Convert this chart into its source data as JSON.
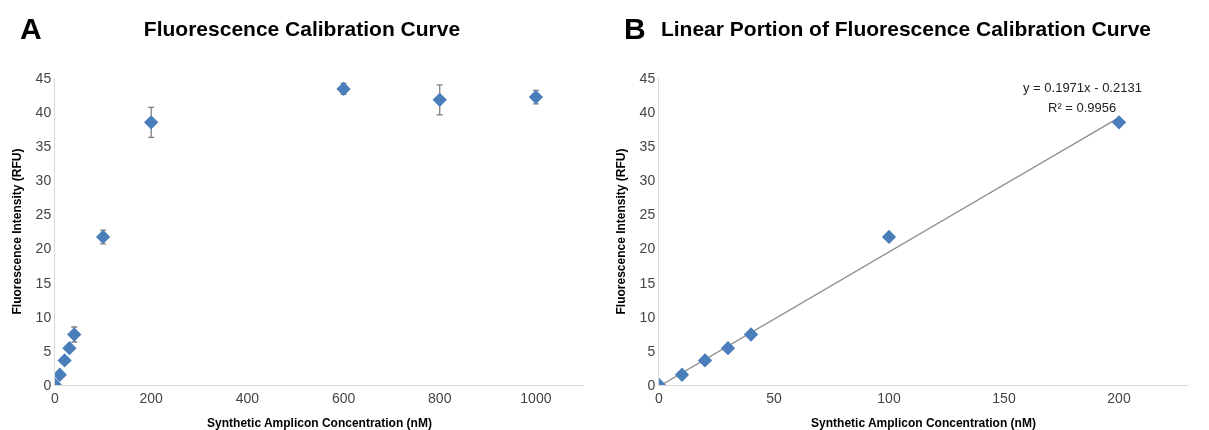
{
  "chart_data": [
    {
      "type": "scatter",
      "title": "Fluorescence Calibration Curve",
      "xlabel": "Synthetic Amplicon Concentration (nM)",
      "ylabel": "Fluorescence Intensity (RFU)",
      "annotations": [
        "A"
      ],
      "x": [
        0,
        10,
        20,
        30,
        40,
        100,
        200,
        600,
        800,
        1000
      ],
      "values": [
        0,
        1.5,
        3.6,
        5.4,
        7.4,
        21.7,
        38.5,
        43.4,
        41.8,
        42.2
      ],
      "errors": [
        null,
        null,
        null,
        null,
        1.1,
        1.0,
        2.2,
        0.8,
        2.2,
        1.0
      ],
      "color": "#4a7ebb",
      "marker": "diamond",
      "xlim": [
        0,
        1100
      ],
      "xticks": [
        0,
        200,
        400,
        600,
        800,
        1000
      ],
      "ylim": [
        0,
        45
      ],
      "yticks": [
        0,
        5,
        10,
        15,
        20,
        25,
        30,
        35,
        40,
        45
      ],
      "grid": false
    },
    {
      "type": "scatter",
      "title": "Linear Portion of Fluorescence Calibration Curve",
      "xlabel": "Synthetic Amplicon Concentration (nM)",
      "ylabel": "Fluorescence Intensity (RFU)",
      "annotations": [
        "B",
        "y = 0.1971x - 0.2131",
        "R² = 0.9956"
      ],
      "series": [
        {
          "color": "#4a7ebb",
          "marker": "diamond",
          "x": [
            0,
            10,
            20,
            30,
            40,
            100,
            200
          ],
          "values": [
            0,
            1.5,
            3.6,
            5.4,
            7.4,
            21.7,
            38.5
          ]
        },
        {
          "type": "line",
          "marker": "none",
          "color": "#8c8c8c",
          "x": [
            1,
            200
          ],
          "values": [
            0,
            39.2
          ]
        }
      ],
      "xlim": [
        0,
        230
      ],
      "xticks": [
        0,
        50,
        100,
        150,
        200
      ],
      "ylim": [
        0,
        45
      ],
      "yticks": [
        0,
        5,
        10,
        15,
        20,
        25,
        30,
        35,
        40,
        45
      ],
      "grid": false
    }
  ]
}
